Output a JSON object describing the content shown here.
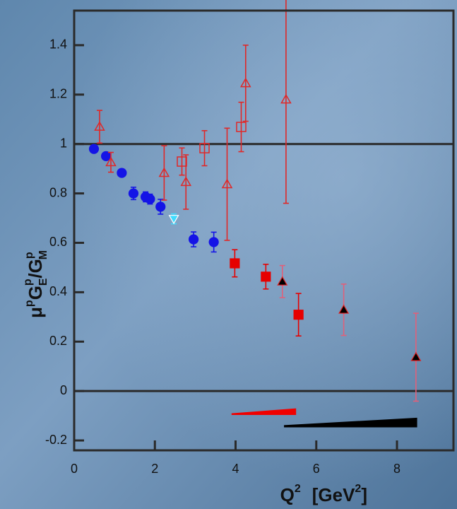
{
  "chart_data": {
    "type": "scatter",
    "xlabel": [
      "Q",
      "2",
      "[GeV",
      "2",
      "]"
    ],
    "ylabel": [
      "μ",
      "p",
      "G",
      "E",
      "p",
      "/G",
      "M",
      "p"
    ],
    "xlim": [
      0,
      9.4
    ],
    "ylim": [
      -0.24,
      1.54
    ],
    "xticks": [
      0,
      2,
      4,
      6,
      8
    ],
    "yticks": [
      -0.2,
      0,
      0.2,
      0.4,
      0.6,
      0.8,
      1,
      1.2,
      1.4
    ],
    "hlines": [
      0,
      1
    ],
    "series": [
      {
        "marker": "circle",
        "color": "#1414e6",
        "fill": "#1414e6",
        "errcolor": "#1414e6",
        "x": [
          0.49,
          0.79,
          1.18,
          1.47,
          1.77,
          1.88,
          2.14,
          2.96,
          3.46
        ],
        "values": [
          0.98,
          0.951,
          0.883,
          0.8,
          0.786,
          0.777,
          0.746,
          0.614,
          0.603
        ],
        "errors": [
          0.005,
          0.005,
          0.008,
          0.025,
          0.02,
          0.02,
          0.03,
          0.03,
          0.04
        ]
      },
      {
        "marker": "down",
        "color": "#ffffff",
        "fill": "#40dcff",
        "errcolor": "#40dcff",
        "x": [
          2.47
        ],
        "values": [
          0.697
        ],
        "errors": [
          0.02
        ]
      },
      {
        "marker": "square",
        "color": "#e60000",
        "fill": "#e60000",
        "errcolor": "#e60000",
        "x": [
          3.98,
          4.75,
          5.56
        ],
        "values": [
          0.517,
          0.463,
          0.309
        ],
        "errors": [
          0.055,
          0.05,
          0.086
        ]
      },
      {
        "marker": "up",
        "color": "#e02020",
        "fill": "#000000",
        "errcolor": "#e0607a",
        "x": [
          5.16,
          6.68,
          8.47
        ],
        "values": [
          0.443,
          0.329,
          0.137
        ],
        "errors": [
          0.065,
          0.104,
          0.178
        ]
      },
      {
        "marker": "up",
        "color": "#e02828",
        "fill": "none",
        "errcolor": "#e02828",
        "x": [
          0.63,
          0.91,
          2.23,
          2.77,
          3.79,
          4.25,
          5.25
        ],
        "values": [
          1.07,
          0.926,
          0.883,
          0.846,
          0.837,
          1.246,
          1.18
        ],
        "errors": [
          0.066,
          0.04,
          0.11,
          0.11,
          0.227,
          0.154,
          0.42
        ]
      },
      {
        "marker": "square",
        "color": "#e02828",
        "fill": "none",
        "errcolor": "#e02828",
        "x": [
          2.67,
          3.23,
          4.14
        ],
        "values": [
          0.929,
          0.983,
          1.069
        ],
        "errors": [
          0.055,
          0.071,
          0.1
        ]
      }
    ],
    "bands": [
      {
        "color": "#f00000",
        "x": [
          3.9,
          5.5
        ],
        "lower": [
          -0.097,
          -0.097
        ],
        "upper": [
          -0.09,
          -0.07
        ]
      },
      {
        "color": "#000000",
        "x": [
          5.2,
          8.5
        ],
        "lower": [
          -0.147,
          -0.147
        ],
        "upper": [
          -0.138,
          -0.108
        ]
      }
    ]
  }
}
